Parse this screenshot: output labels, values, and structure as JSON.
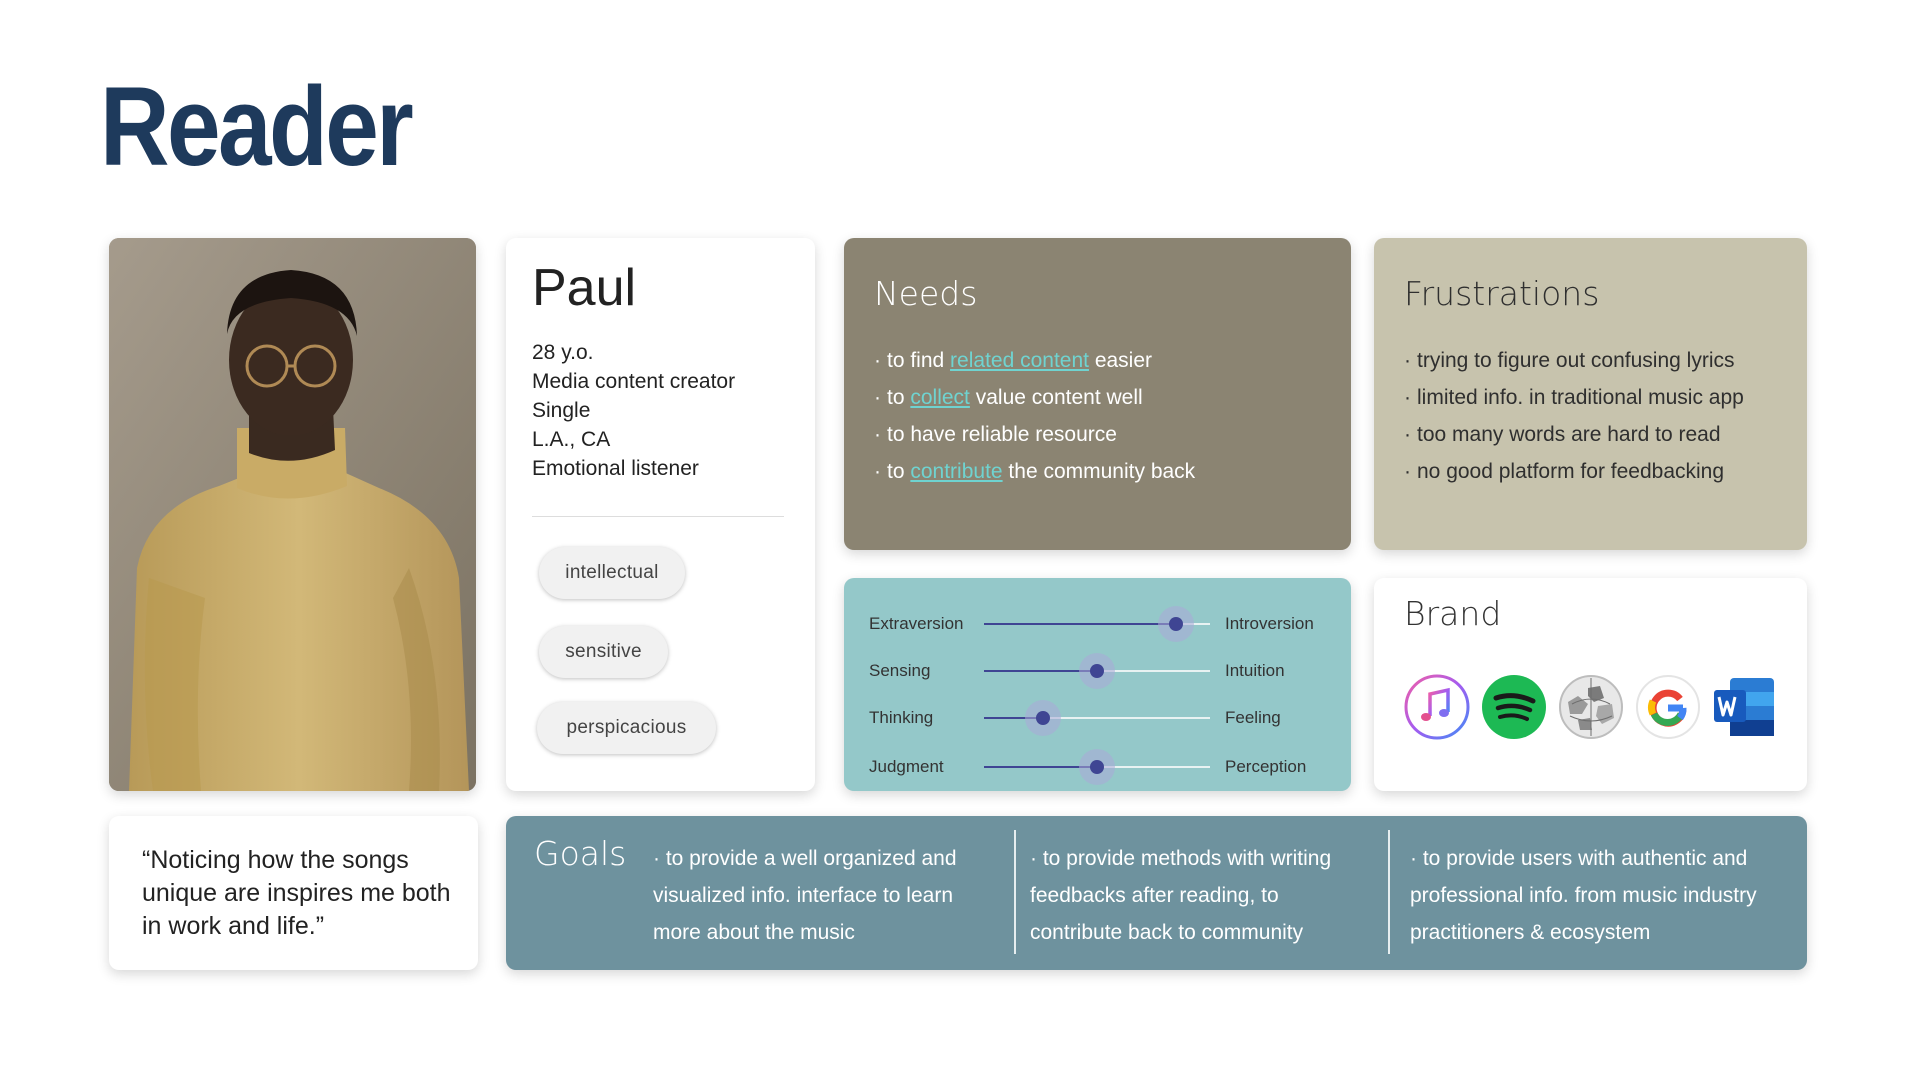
{
  "title": "Reader",
  "profile": {
    "name": "Paul",
    "details": [
      "28 y.o.",
      "Media content creator",
      "Single",
      "L.A., CA",
      "Emotional listener"
    ],
    "traits": [
      "intellectual",
      "sensitive",
      "perspicacious"
    ]
  },
  "needs": {
    "heading": "Needs",
    "items": [
      {
        "pre": "to find ",
        "hl": "related content",
        "post": " easier"
      },
      {
        "pre": "to ",
        "hl": "collect",
        "post": " value content well"
      },
      {
        "pre": "to have reliable resource",
        "hl": "",
        "post": ""
      },
      {
        "pre": "to ",
        "hl": "contribute",
        "post": " the community back"
      }
    ]
  },
  "frustrations": {
    "heading": "Frustrations",
    "items": [
      "trying to figure out confusing lyrics",
      "limited info. in traditional music app",
      "too many words are hard to read",
      "no good platform for feedbacking"
    ]
  },
  "personality": [
    {
      "left": "Extraversion",
      "right": "Introversion",
      "value": 0.85
    },
    {
      "left": "Sensing",
      "right": "Intuition",
      "value": 0.5
    },
    {
      "left": "Thinking",
      "right": "Feeling",
      "value": 0.26
    },
    {
      "left": "Judgment",
      "right": "Perception",
      "value": 0.5
    }
  ],
  "brand": {
    "heading": "Brand",
    "icons": [
      "itunes-icon",
      "spotify-icon",
      "wikipedia-icon",
      "google-icon",
      "word-icon"
    ]
  },
  "quote": "“Noticing how the songs unique are inspires me both in work and life.”",
  "goals": {
    "heading": "Goals",
    "items": [
      "· to provide a well organized and visualized info. interface to learn more about the music",
      "· to provide methods with writing feedbacks after reading, to contribute back to community",
      "· to provide users with authentic and professional info. from music industry practitioners & ecosystem"
    ]
  },
  "colors": {
    "title": "#1e3a5c",
    "needs_bg": "#8b8472",
    "frustrations_bg": "#c7c3ad",
    "traits_bg": "#94c8c9",
    "goals_bg": "#6e929e",
    "slider_accent": "#3f4593",
    "link_highlight": "#6fd3d0"
  }
}
